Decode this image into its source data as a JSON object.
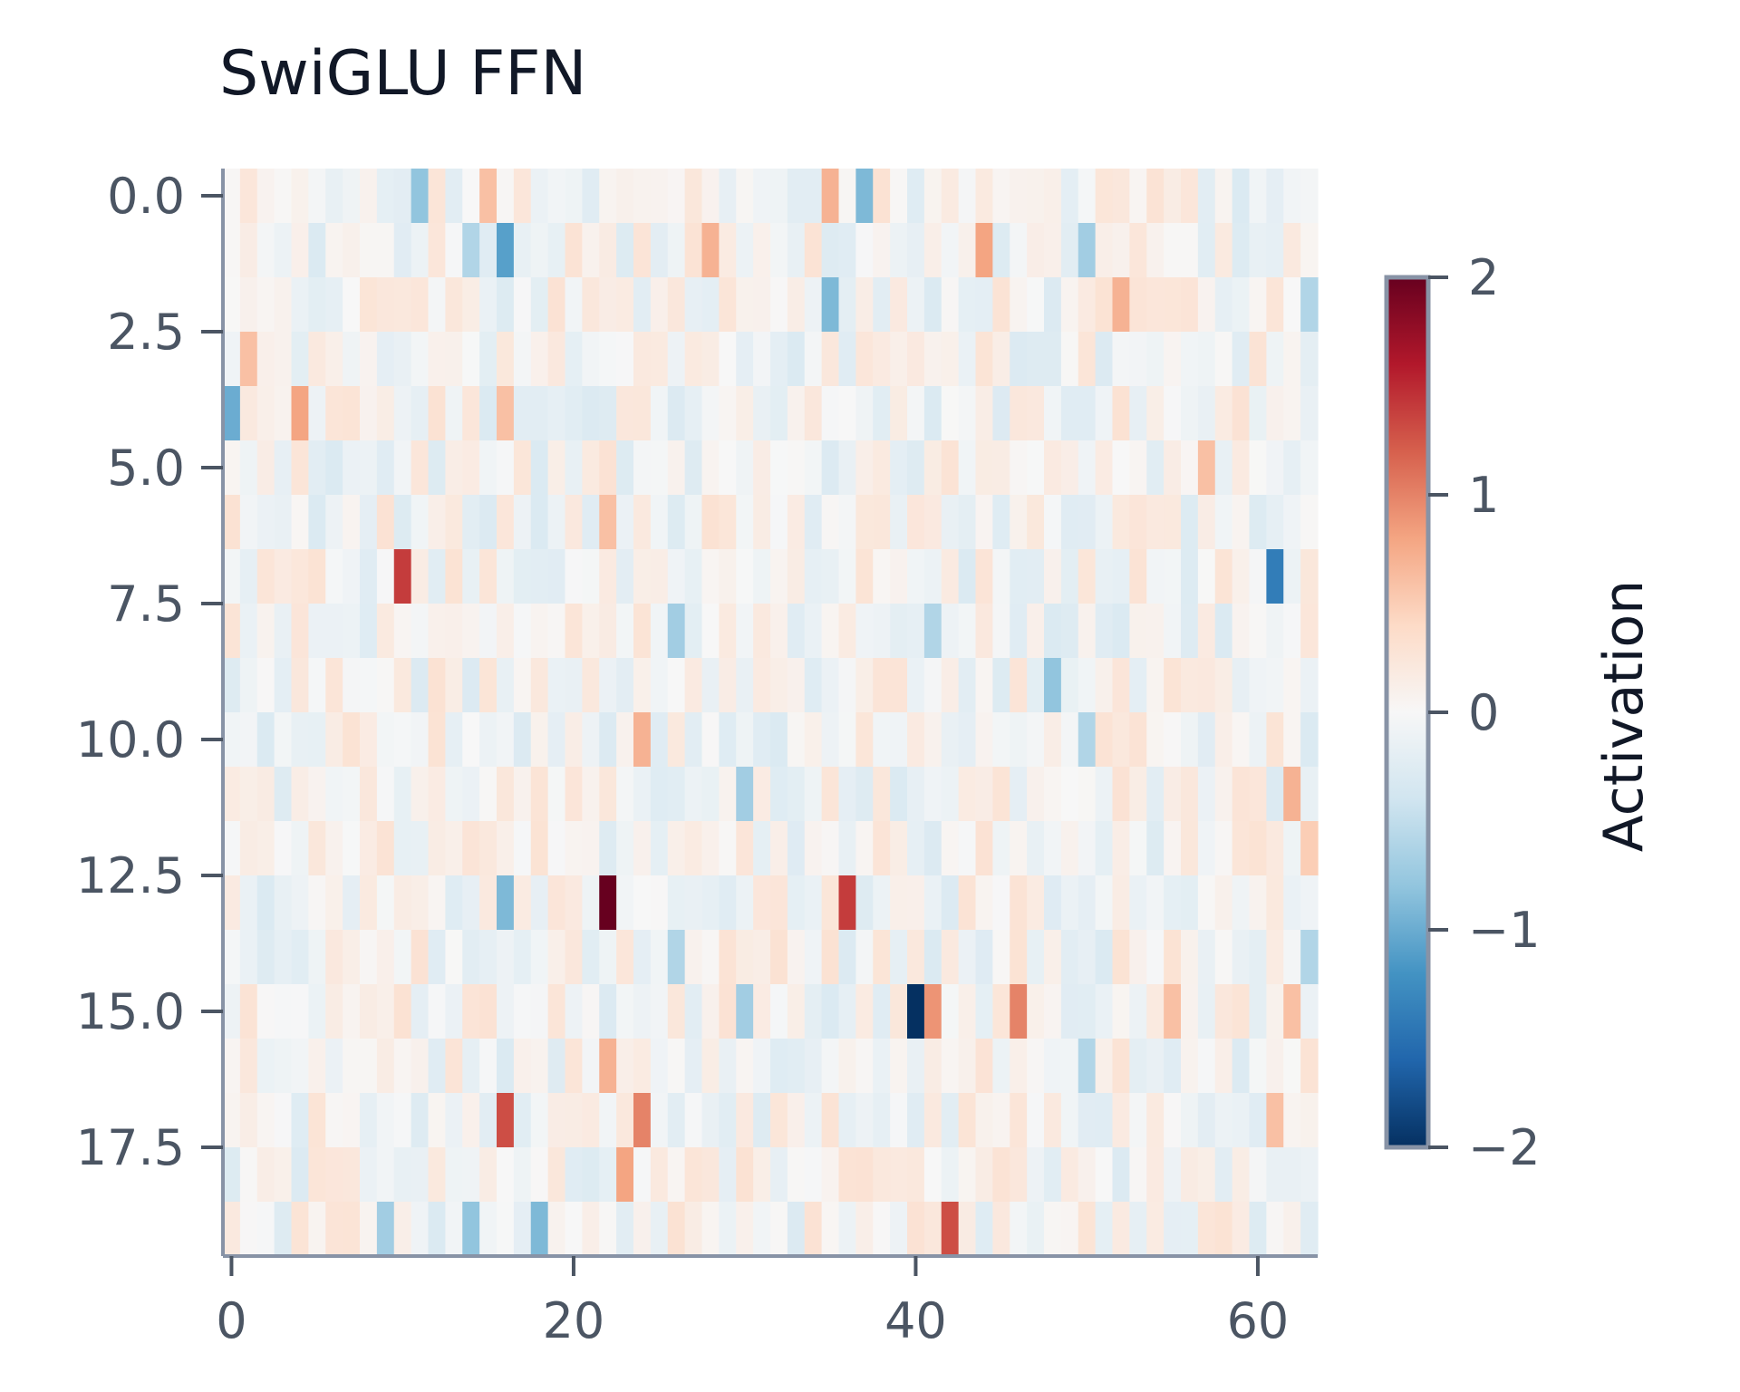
{
  "chart_data": {
    "type": "heatmap",
    "title": "SwiGLU FFN",
    "rows": 20,
    "cols": 64,
    "x_ticks": [
      0,
      20,
      40,
      60
    ],
    "x_tick_labels": [
      "0",
      "20",
      "40",
      "60"
    ],
    "y_ticks": [
      0.0,
      2.5,
      5.0,
      7.5,
      10.0,
      12.5,
      15.0,
      17.5
    ],
    "y_tick_labels": [
      "0.0",
      "2.5",
      "5.0",
      "7.5",
      "10.0",
      "12.5",
      "15.0",
      "17.5"
    ],
    "colorbar": {
      "label": "Activation",
      "min": -2,
      "max": 2,
      "ticks": [
        2,
        1,
        0,
        -1,
        -2
      ],
      "tick_labels": [
        "2",
        "1",
        "0",
        "−1",
        "−2"
      ],
      "colormap": "RdBu_r"
    },
    "baseline_amplitude": 0.3,
    "notable_cells": [
      {
        "row": 0,
        "col": 11,
        "value": -0.8
      },
      {
        "row": 0,
        "col": 15,
        "value": 0.6
      },
      {
        "row": 0,
        "col": 35,
        "value": 0.7
      },
      {
        "row": 0,
        "col": 37,
        "value": -0.9
      },
      {
        "row": 1,
        "col": 16,
        "value": -1.1
      },
      {
        "row": 1,
        "col": 14,
        "value": -0.6
      },
      {
        "row": 1,
        "col": 28,
        "value": 0.7
      },
      {
        "row": 1,
        "col": 44,
        "value": 0.8
      },
      {
        "row": 1,
        "col": 50,
        "value": -0.7
      },
      {
        "row": 2,
        "col": 35,
        "value": -0.9
      },
      {
        "row": 2,
        "col": 52,
        "value": 0.7
      },
      {
        "row": 2,
        "col": 63,
        "value": -0.6
      },
      {
        "row": 3,
        "col": 1,
        "value": 0.6
      },
      {
        "row": 4,
        "col": 0,
        "value": -1.0
      },
      {
        "row": 4,
        "col": 4,
        "value": 0.8
      },
      {
        "row": 4,
        "col": 16,
        "value": 0.6
      },
      {
        "row": 5,
        "col": 57,
        "value": 0.6
      },
      {
        "row": 6,
        "col": 22,
        "value": 0.6
      },
      {
        "row": 7,
        "col": 10,
        "value": 1.4
      },
      {
        "row": 7,
        "col": 61,
        "value": -1.4
      },
      {
        "row": 8,
        "col": 26,
        "value": -0.7
      },
      {
        "row": 8,
        "col": 41,
        "value": -0.6
      },
      {
        "row": 9,
        "col": 48,
        "value": -0.8
      },
      {
        "row": 10,
        "col": 24,
        "value": 0.7
      },
      {
        "row": 10,
        "col": 50,
        "value": -0.6
      },
      {
        "row": 11,
        "col": 30,
        "value": -0.7
      },
      {
        "row": 11,
        "col": 62,
        "value": 0.7
      },
      {
        "row": 12,
        "col": 63,
        "value": 0.5
      },
      {
        "row": 13,
        "col": 16,
        "value": -0.9
      },
      {
        "row": 13,
        "col": 22,
        "value": 2.0
      },
      {
        "row": 13,
        "col": 36,
        "value": 1.4
      },
      {
        "row": 14,
        "col": 26,
        "value": -0.6
      },
      {
        "row": 14,
        "col": 63,
        "value": -0.6
      },
      {
        "row": 15,
        "col": 40,
        "value": -2.0
      },
      {
        "row": 15,
        "col": 41,
        "value": 0.9
      },
      {
        "row": 15,
        "col": 46,
        "value": 1.0
      },
      {
        "row": 15,
        "col": 55,
        "value": 0.6
      },
      {
        "row": 15,
        "col": 30,
        "value": -0.7
      },
      {
        "row": 15,
        "col": 62,
        "value": 0.6
      },
      {
        "row": 16,
        "col": 22,
        "value": 0.7
      },
      {
        "row": 16,
        "col": 50,
        "value": -0.6
      },
      {
        "row": 17,
        "col": 16,
        "value": 1.3
      },
      {
        "row": 17,
        "col": 24,
        "value": 1.0
      },
      {
        "row": 17,
        "col": 61,
        "value": 0.6
      },
      {
        "row": 18,
        "col": 23,
        "value": 0.8
      },
      {
        "row": 19,
        "col": 9,
        "value": -0.7
      },
      {
        "row": 19,
        "col": 14,
        "value": -0.8
      },
      {
        "row": 19,
        "col": 18,
        "value": -0.9
      },
      {
        "row": 19,
        "col": 42,
        "value": 1.3
      }
    ]
  }
}
